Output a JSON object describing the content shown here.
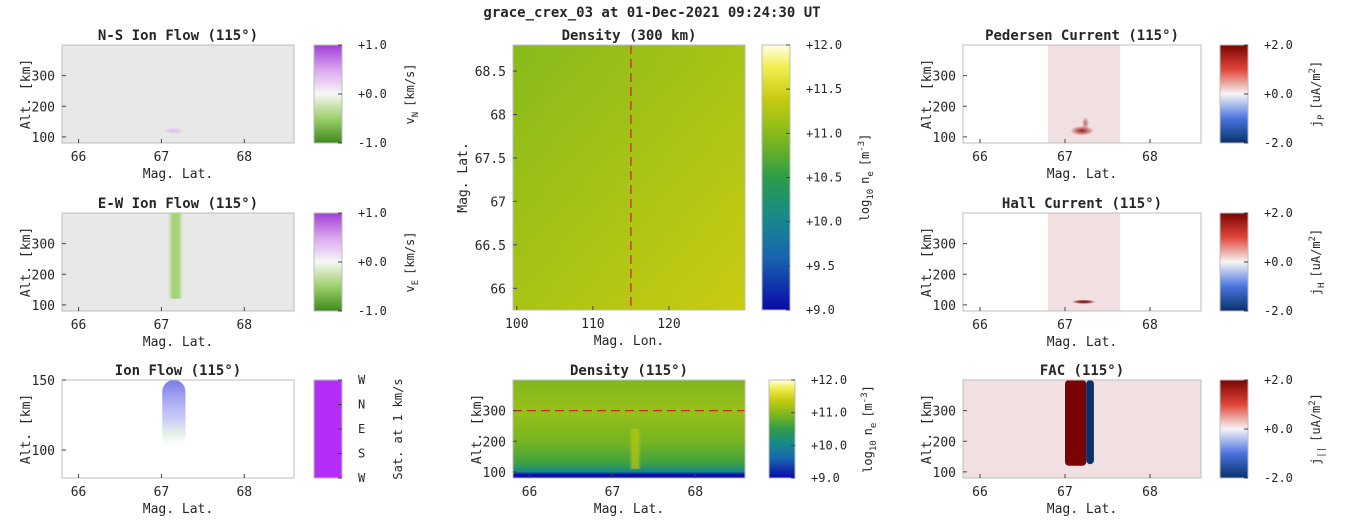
{
  "suptitle": "grace_crex_03 at 01-Dec-2021 09:24:30 UT",
  "chart_data": [
    {
      "id": "ns",
      "type": "heatmap",
      "title": "N-S Ion Flow (115°)",
      "xlabel": "Mag. Lat.",
      "ylabel": "Alt. [km]",
      "xlim": [
        65.8,
        68.6
      ],
      "ylim": [
        80,
        400
      ],
      "xticks": [
        66,
        67,
        68
      ],
      "yticks": [
        100,
        200,
        300
      ],
      "colorbar": {
        "colormap": "purple-white-green",
        "label": "v_N [km/s]",
        "label_main": "v",
        "label_sub": "N",
        "label_unit": "[km/s]",
        "ticks": [
          {
            "v": 1.0,
            "label": "+1.0"
          },
          {
            "v": 0.0,
            "label": "+0.0"
          },
          {
            "v": -1.0,
            "label": "-1.0"
          }
        ],
        "range": [
          -1,
          1
        ]
      },
      "background": "#e8e8e8",
      "features": [
        {
          "kind": "blob",
          "lat": 67.15,
          "alt": 120,
          "lat_width": 0.12,
          "alt_height": 20,
          "value": 0.35
        }
      ]
    },
    {
      "id": "ew",
      "type": "heatmap",
      "title": "E-W Ion Flow (115°)",
      "xlabel": "Mag. Lat.",
      "ylabel": "Alt. [km]",
      "xlim": [
        65.8,
        68.6
      ],
      "ylim": [
        80,
        400
      ],
      "xticks": [
        66,
        67,
        68
      ],
      "yticks": [
        100,
        200,
        300
      ],
      "colorbar": {
        "colormap": "purple-white-green",
        "label": "v_E [km/s]",
        "label_main": "v",
        "label_sub": "E",
        "label_unit": "[km/s]",
        "ticks": [
          {
            "v": 1.0,
            "label": "+1.0"
          },
          {
            "v": 0.0,
            "label": "+0.0"
          },
          {
            "v": -1.0,
            "label": "-1.0"
          }
        ],
        "range": [
          -1,
          1
        ]
      },
      "background": "#e8e8e8",
      "features": [
        {
          "kind": "column",
          "lat_min": 67.08,
          "lat_max": 67.26,
          "alt_min": 120,
          "alt_max": 400,
          "value": -0.45
        }
      ]
    },
    {
      "id": "flow",
      "type": "heatmap",
      "title": "Ion Flow (115°)",
      "xlabel": "Mag. Lat.",
      "ylabel": "Alt. [km]",
      "xlim": [
        65.8,
        68.6
      ],
      "ylim": [
        80,
        150
      ],
      "xticks": [
        66,
        67,
        68
      ],
      "yticks": [
        100,
        150
      ],
      "colorbar": {
        "colormap": "direction-wheel",
        "label": "Sat. at 1 km/s",
        "label_main": "Sat. at 1 km/s",
        "label_sub": "",
        "label_unit": "",
        "ticks": [
          {
            "v": 0.0,
            "label": "W"
          },
          {
            "v": 0.25,
            "label": "N"
          },
          {
            "v": 0.5,
            "label": "E"
          },
          {
            "v": 0.75,
            "label": "S"
          },
          {
            "v": 1.0,
            "label": "W"
          }
        ],
        "range": [
          0,
          1
        ],
        "reverse": true
      },
      "background": "#ffffff",
      "features": [
        {
          "kind": "fade-column",
          "lat": 67.15,
          "alt_min": 100,
          "alt_max": 150,
          "lat_width": 0.28
        }
      ]
    },
    {
      "id": "dens_map",
      "type": "heatmap",
      "title": "Density (300 km)",
      "xlabel": "Mag. Lon.",
      "ylabel": "Mag. Lat.",
      "xlim": [
        99.5,
        130
      ],
      "ylim": [
        65.75,
        68.8
      ],
      "xticks": [
        100,
        110,
        120
      ],
      "yticks": [
        66,
        66.5,
        67,
        67.5,
        68,
        68.5
      ],
      "colorbar": {
        "colormap": "density",
        "label": "log10 ne [m^-3]",
        "label_main": "log",
        "label_sub": "10",
        "label_unit": "n",
        "ticks": [
          {
            "v": 12.0,
            "label": "+12.0"
          },
          {
            "v": 11.5,
            "label": "+11.5"
          },
          {
            "v": 11.0,
            "label": "+11.0"
          },
          {
            "v": 10.5,
            "label": "+10.5"
          },
          {
            "v": 10.0,
            "label": "+10.0"
          },
          {
            "v": 9.5,
            "label": "+9.5"
          },
          {
            "v": 9.0,
            "label": "+9.0"
          }
        ],
        "range": [
          9,
          12
        ]
      },
      "value_range": [
        11.0,
        11.4
      ],
      "reference_line": {
        "orientation": "vertical",
        "x": 115,
        "color": "#cc2222"
      }
    },
    {
      "id": "dens_alt",
      "type": "heatmap",
      "title": "Density (115°)",
      "xlabel": "Mag. Lat.",
      "ylabel": "Alt. [km]",
      "xlim": [
        65.8,
        68.6
      ],
      "ylim": [
        80,
        400
      ],
      "xticks": [
        66,
        67,
        68
      ],
      "yticks": [
        100,
        200,
        300
      ],
      "colorbar": {
        "colormap": "density",
        "label": "log10 ne [m^-3]",
        "label_main": "log",
        "label_sub": "10",
        "label_unit": "n",
        "ticks": [
          {
            "v": 12.0,
            "label": "+12.0"
          },
          {
            "v": 11.0,
            "label": "+11.0"
          },
          {
            "v": 10.0,
            "label": "+10.0"
          },
          {
            "v": 9.0,
            "label": "+9.0"
          }
        ],
        "range": [
          9,
          12
        ]
      },
      "profile": [
        {
          "alt": 80,
          "v": 9.0
        },
        {
          "alt": 92,
          "v": 9.05
        },
        {
          "alt": 100,
          "v": 10.0
        },
        {
          "alt": 130,
          "v": 10.6
        },
        {
          "alt": 200,
          "v": 10.9
        },
        {
          "alt": 300,
          "v": 11.1
        },
        {
          "alt": 400,
          "v": 10.95
        }
      ],
      "features": [
        {
          "kind": "column",
          "lat_min": 67.2,
          "lat_max": 67.35,
          "alt_min": 110,
          "alt_max": 240,
          "value": 11.3
        }
      ],
      "reference_line": {
        "orientation": "horizontal",
        "y": 300,
        "color": "#cc2222"
      }
    },
    {
      "id": "ped",
      "type": "heatmap",
      "title": "Pedersen Current (115°)",
      "xlabel": "Mag. Lat.",
      "ylabel": "Alt. [km]",
      "xlim": [
        65.8,
        68.6
      ],
      "ylim": [
        80,
        400
      ],
      "xticks": [
        66,
        67,
        68
      ],
      "yticks": [
        100,
        200,
        300
      ],
      "colorbar": {
        "colormap": "red-white-blue",
        "label": "j_P [uA/m^2]",
        "label_main": "j",
        "label_sub": "P",
        "label_unit": "[uA/m",
        "ticks": [
          {
            "v": 2.0,
            "label": "+2.0"
          },
          {
            "v": 0.0,
            "label": "+0.0"
          },
          {
            "v": -2.0,
            "label": "-2.0"
          }
        ],
        "range": [
          -2,
          2
        ]
      },
      "background": "#ffffff",
      "shaded_region": {
        "lat_min": 66.8,
        "lat_max": 67.65,
        "color": "#f0e0e2"
      },
      "features": [
        {
          "kind": "streak",
          "lat": 67.2,
          "alt": 120,
          "lat_width": 0.14,
          "alt_height": 70,
          "value": 1.6
        }
      ]
    },
    {
      "id": "hall",
      "type": "heatmap",
      "title": "Hall Current (115°)",
      "xlabel": "Mag. Lat.",
      "ylabel": "Alt. [km]",
      "xlim": [
        65.8,
        68.6
      ],
      "ylim": [
        80,
        400
      ],
      "xticks": [
        66,
        67,
        68
      ],
      "yticks": [
        100,
        200,
        300
      ],
      "colorbar": {
        "colormap": "red-white-blue",
        "label": "j_H [uA/m^2]",
        "label_main": "j",
        "label_sub": "H",
        "label_unit": "[uA/m",
        "ticks": [
          {
            "v": 2.0,
            "label": "+2.0"
          },
          {
            "v": 0.0,
            "label": "+0.0"
          },
          {
            "v": -2.0,
            "label": "-2.0"
          }
        ],
        "range": [
          -2,
          2
        ]
      },
      "background": "#ffffff",
      "shaded_region": {
        "lat_min": 66.8,
        "lat_max": 67.65,
        "color": "#f0e0e2"
      },
      "features": [
        {
          "kind": "blob",
          "lat": 67.22,
          "alt": 110,
          "lat_width": 0.14,
          "alt_height": 14,
          "value": 2.0
        }
      ]
    },
    {
      "id": "fac",
      "type": "heatmap",
      "title": "FAC (115°)",
      "xlabel": "Mag. Lat.",
      "ylabel": "Alt. [km]",
      "xlim": [
        65.8,
        68.6
      ],
      "ylim": [
        80,
        400
      ],
      "xticks": [
        66,
        67,
        68
      ],
      "yticks": [
        100,
        200,
        300
      ],
      "colorbar": {
        "colormap": "red-white-blue",
        "label": "j|| [uA/m^2]",
        "label_main": "j",
        "label_sub": "||",
        "label_unit": "[uA/m",
        "ticks": [
          {
            "v": 2.0,
            "label": "+2.0"
          },
          {
            "v": 0.0,
            "label": "+0.0"
          },
          {
            "v": -2.0,
            "label": "-2.0"
          }
        ],
        "range": [
          -2,
          2
        ]
      },
      "background": "#f0e0e2",
      "features": [
        {
          "kind": "column",
          "lat_min": 67.0,
          "lat_max": 67.25,
          "alt_min": 120,
          "alt_max": 400,
          "value": 2.0
        },
        {
          "kind": "column",
          "lat_min": 67.25,
          "lat_max": 67.34,
          "alt_min": 125,
          "alt_max": 400,
          "value": -2.0
        }
      ]
    }
  ]
}
